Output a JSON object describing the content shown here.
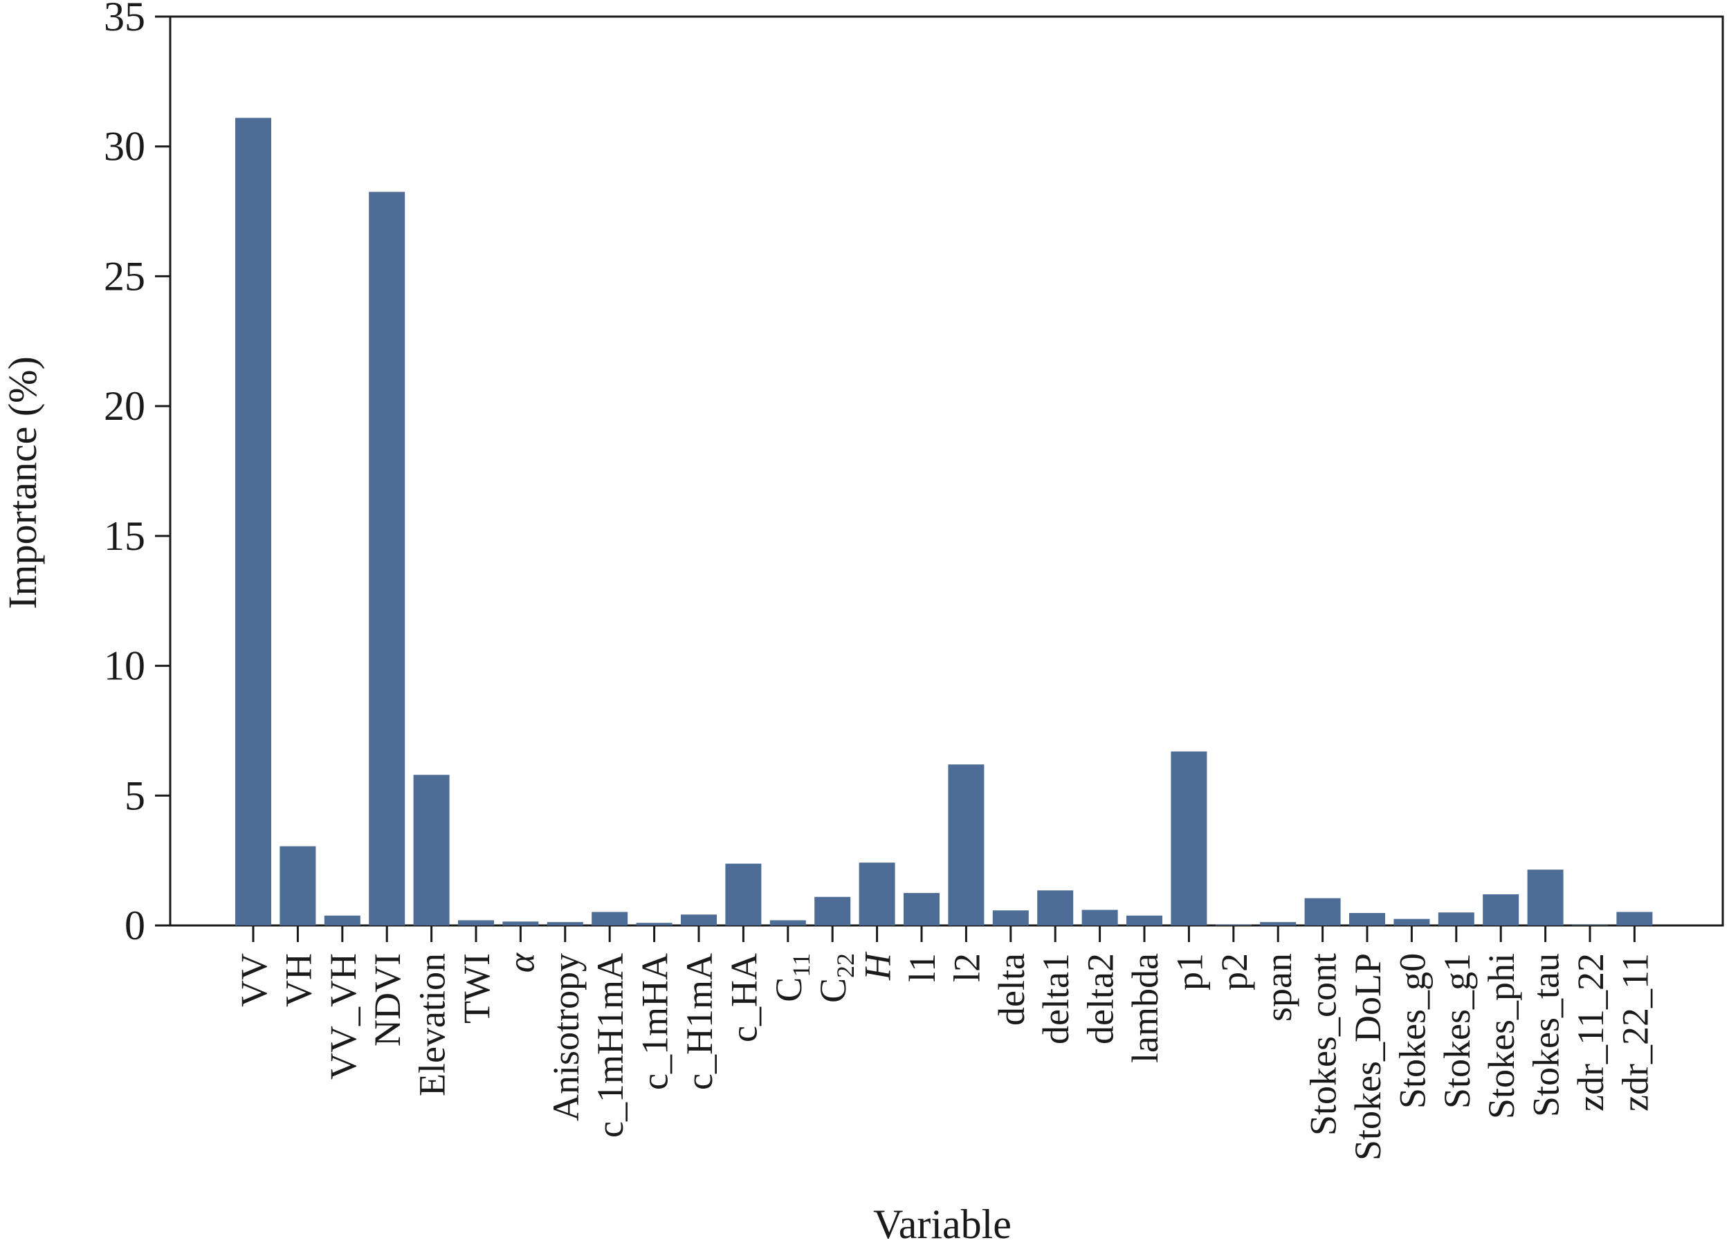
{
  "chart_data": {
    "type": "bar",
    "xlabel": "Variable",
    "ylabel": "Importance (%)",
    "ylim": [
      0,
      35
    ],
    "yticks": [
      0,
      5,
      10,
      15,
      20,
      25,
      30,
      35
    ],
    "bar_color": "#4e6d96",
    "grid": false,
    "categories": [
      {
        "label": "VV"
      },
      {
        "label": "VH"
      },
      {
        "label": "VV_VH"
      },
      {
        "label": "NDVI"
      },
      {
        "label": "Elevation"
      },
      {
        "label": "TWI"
      },
      {
        "label": "α",
        "italic": true
      },
      {
        "label": "Anisotropy"
      },
      {
        "label": "c_1mH1mA"
      },
      {
        "label": "c_1mHA"
      },
      {
        "label": "c_H1mA"
      },
      {
        "label": "c_HA"
      },
      {
        "label": "C",
        "sub": "11"
      },
      {
        "label": "C",
        "sub": "22"
      },
      {
        "label": "H",
        "italic": true
      },
      {
        "label": "l1"
      },
      {
        "label": "l2"
      },
      {
        "label": "delta"
      },
      {
        "label": "delta1"
      },
      {
        "label": "delta2"
      },
      {
        "label": "lambda"
      },
      {
        "label": "p1"
      },
      {
        "label": "p2"
      },
      {
        "label": "span"
      },
      {
        "label": "Stokes_cont"
      },
      {
        "label": "Stokes_DoLP"
      },
      {
        "label": "Stokes_g0"
      },
      {
        "label": "Stokes_g1"
      },
      {
        "label": "Stokes_phi"
      },
      {
        "label": "Stokes_tau"
      },
      {
        "label": "zdr_11_22"
      },
      {
        "label": "zdr_22_11"
      }
    ],
    "values": [
      31.1,
      3.05,
      0.38,
      28.25,
      5.8,
      0.2,
      0.15,
      0.13,
      0.52,
      0.1,
      0.42,
      2.38,
      0.2,
      1.1,
      2.42,
      1.25,
      6.2,
      0.58,
      1.35,
      0.6,
      0.38,
      6.7,
      0.03,
      0.13,
      1.05,
      0.48,
      0.25,
      0.5,
      1.2,
      2.15,
      0.02,
      0.52
    ]
  }
}
